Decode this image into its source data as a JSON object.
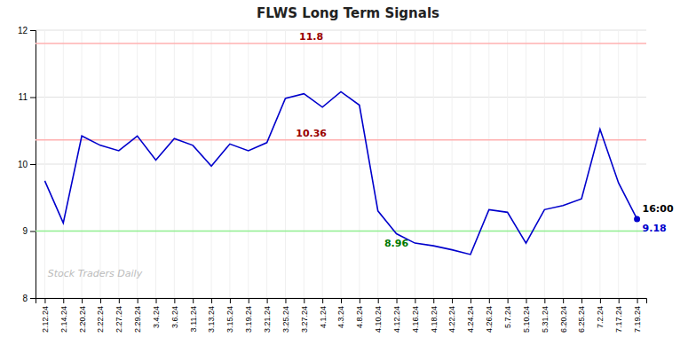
{
  "chart_data": {
    "type": "line",
    "title": "FLWS Long Term Signals",
    "watermark": "Stock Traders Daily",
    "categories": [
      "2.12.24",
      "2.14.24",
      "2.20.24",
      "2.22.24",
      "2.27.24",
      "2.29.24",
      "3.4.24",
      "3.6.24",
      "3.11.24",
      "3.13.24",
      "3.15.24",
      "3.19.24",
      "3.21.24",
      "3.25.24",
      "3.27.24",
      "4.1.24",
      "4.3.24",
      "4.8.24",
      "4.10.24",
      "4.12.24",
      "4.16.24",
      "4.18.24",
      "4.22.24",
      "4.24.24",
      "4.26.24",
      "5.7.24",
      "5.10.24",
      "5.31.24",
      "6.20.24",
      "6.25.24",
      "7.2.24",
      "7.17.24",
      "7.19.24"
    ],
    "series": [
      {
        "color": "#0000cc",
        "values": [
          9.75,
          9.12,
          10.42,
          10.28,
          10.2,
          10.42,
          10.06,
          10.38,
          10.28,
          9.97,
          10.3,
          10.2,
          10.32,
          10.98,
          11.05,
          10.85,
          11.08,
          10.88,
          9.3,
          8.96,
          8.82,
          8.78,
          8.72,
          8.65,
          9.32,
          9.28,
          8.82,
          9.32,
          9.38,
          9.48,
          10.52,
          9.72,
          9.18
        ]
      }
    ],
    "ylim": [
      8.0,
      12.0
    ],
    "yticks": [
      8,
      9,
      10,
      11,
      12
    ],
    "grid": true,
    "reference_lines": [
      {
        "value": 11.8,
        "color": "#ffb0b0"
      },
      {
        "value": 10.36,
        "color": "#ffb0b0"
      },
      {
        "value": 9.0,
        "color": "#90ee90"
      }
    ],
    "annotations": [
      {
        "text": "11.8",
        "y": 11.8,
        "color": "#990000",
        "position": "above"
      },
      {
        "text": "10.36",
        "y": 10.36,
        "color": "#990000",
        "position": "above"
      },
      {
        "text": "8.96",
        "x": "4.12.24",
        "y": 8.96,
        "color": "#007700",
        "position": "below"
      },
      {
        "text": "16:00",
        "x": "7.19.24",
        "y": 9.18,
        "color": "#000000",
        "position": "above"
      },
      {
        "text": "9.18",
        "x": "7.19.24",
        "y": 9.18,
        "color": "#0000cc",
        "position": "below"
      }
    ]
  }
}
